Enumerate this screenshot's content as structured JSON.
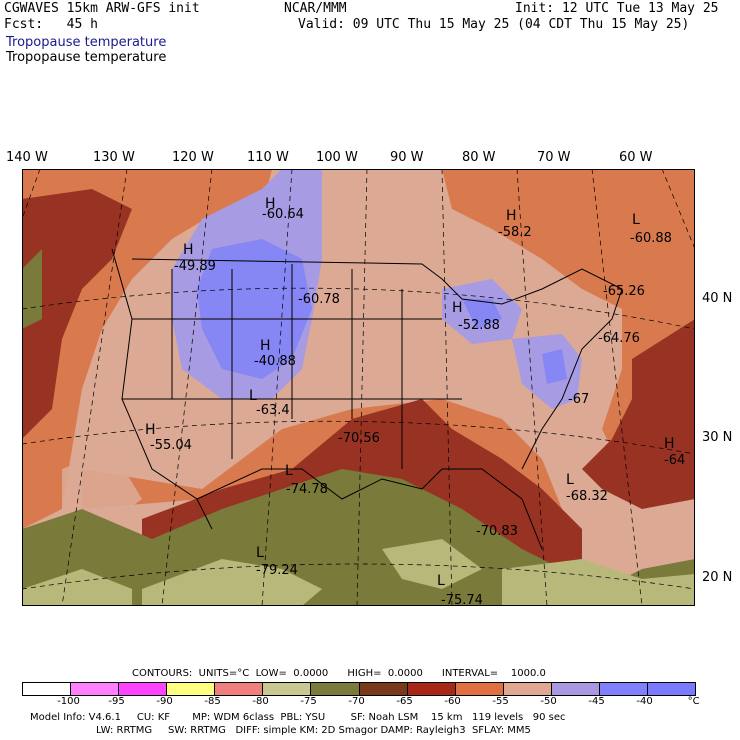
{
  "header": {
    "model_line": "CGWAVES 15km ARW-GFS init",
    "fcst_line": "Fcst:   45 h",
    "org": "NCAR/MMM",
    "init_line": "Init: 12 UTC Tue 13 May 25",
    "valid_line": "Valid: 09 UTC Thu 15 May 25 (04 CDT Thu 15 May 25)",
    "field_title_1": "Tropopause temperature",
    "field_title_2": "Tropopause temperature"
  },
  "longitude_labels": [
    "140 W",
    "130 W",
    "120 W",
    "110 W",
    "100 W",
    "90 W",
    "80 W",
    "70 W",
    "60 W"
  ],
  "latitude_labels": [
    "40 N",
    "30 N",
    "20 N"
  ],
  "extrema": [
    {
      "type": "H",
      "label": "H",
      "value": "-60.64",
      "cls": "cool"
    },
    {
      "type": "H",
      "label": "H",
      "value": "-58.2",
      "cls": "warm"
    },
    {
      "type": "L",
      "label": "L",
      "value": "-60.88",
      "cls": "warm"
    },
    {
      "type": "H",
      "label": "H",
      "value": "-49.89",
      "cls": "cool"
    },
    {
      "type": "-",
      "label": "",
      "value": "-60.78",
      "cls": "cool"
    },
    {
      "type": "-",
      "label": "",
      "value": "-65.26",
      "cls": "warm"
    },
    {
      "type": "H",
      "label": "H",
      "value": "-52.88",
      "cls": "cool"
    },
    {
      "type": "-",
      "label": "",
      "value": "-64.76",
      "cls": "warm"
    },
    {
      "type": "H",
      "label": "H",
      "value": "-40.88",
      "cls": "cool"
    },
    {
      "type": "L",
      "label": "L",
      "value": "-63.4",
      "cls": "warm"
    },
    {
      "type": "-",
      "label": "",
      "value": "-70.56",
      "cls": "warm"
    },
    {
      "type": "H",
      "label": "H",
      "value": "-55.04",
      "cls": "warm"
    },
    {
      "type": "-",
      "label": "",
      "value": "-67",
      "cls": "warm"
    },
    {
      "type": "H",
      "label": "H",
      "value": "-64",
      "cls": "warm"
    },
    {
      "type": "L",
      "label": "L",
      "value": "-74.78",
      "cls": "warm"
    },
    {
      "type": "L",
      "label": "L",
      "value": "-68.32",
      "cls": "warm"
    },
    {
      "type": "-",
      "label": "",
      "value": "-70.83",
      "cls": "warm"
    },
    {
      "type": "L",
      "label": "L",
      "value": "-79.24",
      "cls": "warm"
    },
    {
      "type": "L",
      "label": "L",
      "value": "-75.74",
      "cls": "warm"
    }
  ],
  "legend": {
    "contours_line": "CONTOURS:  UNITS=°C  LOW=  0.0000      HIGH=  0.0000      INTERVAL=    1000.0",
    "colors": [
      "#ffffff",
      "#ff80ff",
      "#ff44ff",
      "#ffff80",
      "#f08080",
      "#c8c890",
      "#7a7a3a",
      "#7a3a1a",
      "#a82818",
      "#e07040",
      "#e0a890",
      "#a898e0",
      "#8080ff",
      "#7a7aff"
    ],
    "ticks": [
      "-100",
      "-95",
      "-90",
      "-85",
      "-80",
      "-75",
      "-70",
      "-65",
      "-60",
      "-55",
      "-50",
      "-45",
      "-40",
      "°C"
    ]
  },
  "footer": {
    "line1": "Model Info: V4.6.1     CU: KF       MP: WDM 6class  PBL: YSU        SF: Noah LSM    15 km   119 levels   90 sec",
    "line2": "LW: RRTMG     SW: RRTMG   DIFF: simple KM: 2D Smagor DAMP: Rayleigh3  SFLAY: MM5"
  },
  "colors": {
    "dark_olive": "#7a7a3a",
    "khaki": "#b8b87a",
    "brown_red": "#983222",
    "orange": "#d97a4e",
    "salmon": "#dba994",
    "lavender": "#a79be3",
    "periwinkle": "#8686f4"
  }
}
